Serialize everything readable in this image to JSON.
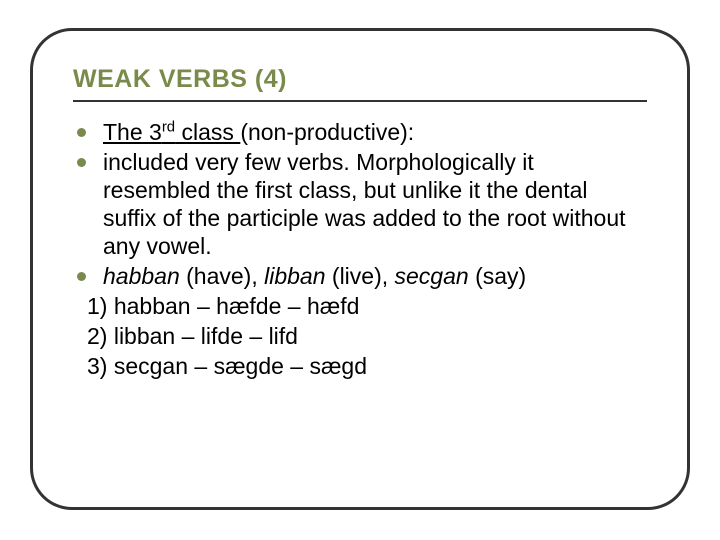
{
  "colors": {
    "accent": "#7a8a4b",
    "frame_border": "#333333",
    "text": "#000000",
    "background": "#ffffff"
  },
  "typography": {
    "title_font": "Arial Black",
    "title_size_pt": 25,
    "title_weight": 900,
    "body_font": "Arial",
    "body_size_pt": 23,
    "line_height": 1.22
  },
  "layout": {
    "slide_w": 720,
    "slide_h": 540,
    "frame_radius": 42,
    "frame_border_w": 3,
    "bullet_diameter": 9
  },
  "title": "WEAK VERBS (4)",
  "bullets": {
    "b1_pre": "The 3",
    "b1_sup": "rd",
    "b1_mid": " class ",
    "b1_post": "(non-productive):",
    "b2": " included very few verbs. Morphologically it resembled the first class, but unlike it the dental suffix of the participle was added to the root without any vowel.",
    "b3_i1": "habban",
    "b3_t1": " (have), ",
    "b3_i2": "libban",
    "b3_t2": " (live), ",
    "b3_i3": "secgan",
    "b3_t3": " (say)"
  },
  "numbered": {
    "n1": "1) habban – hæfde – hæfd",
    "n2": "2) libban – lifde – lifd",
    "n3": "3) secgan – sægde – sægd"
  }
}
